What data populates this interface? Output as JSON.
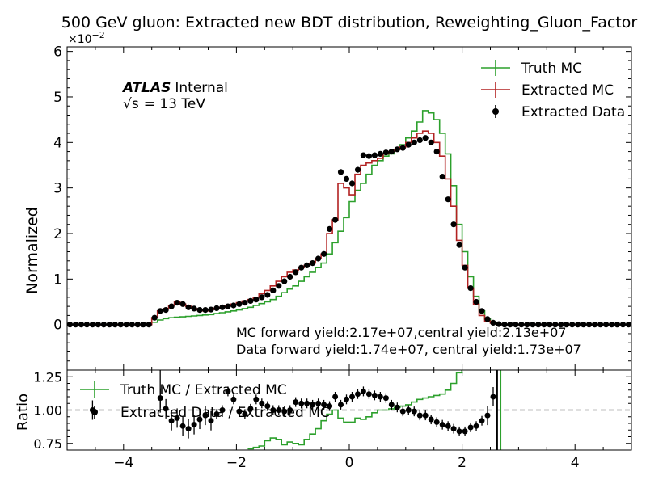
{
  "title": "500 GeV gluon: Extracted new BDT distribution, Reweighting_Gluon_Factor",
  "atlas": {
    "brand": "ATLAS",
    "status": "Internal",
    "energy_prefix": "√s",
    "energy_value": "= 13 TeV"
  },
  "yields": {
    "mc": "MC forward yield:2.17e+07,central yield:2.13e+07",
    "data": "Data forward yield:1.74e+07, central yield:1.73e+07"
  },
  "colors": {
    "truth": "#2ca02c",
    "extracted": "#b22222",
    "data": "#000000"
  },
  "chart_data": [
    {
      "type": "line",
      "ylabel": "Normalized",
      "y_multiplier": "×10",
      "y_exponent": "−2",
      "xlim": [
        -5,
        5
      ],
      "ylim": [
        -1,
        6.1
      ],
      "xticks": [
        -4,
        -2,
        0,
        2,
        4
      ],
      "xtick_labels": [
        "−4",
        "−2",
        "0",
        "2",
        "4"
      ],
      "yticks": [
        0,
        1,
        2,
        3,
        4,
        5,
        6
      ],
      "ytick_labels": [
        "0",
        "1",
        "2",
        "3",
        "4",
        "5",
        "6"
      ],
      "legend_position": "top-right",
      "legend": [
        "Truth MC",
        "Extracted MC",
        "Extracted Data"
      ],
      "x": [
        -4.95,
        -4.85,
        -4.75,
        -4.65,
        -4.55,
        -4.45,
        -4.35,
        -4.25,
        -4.15,
        -4.05,
        -3.95,
        -3.85,
        -3.75,
        -3.65,
        -3.55,
        -3.45,
        -3.35,
        -3.25,
        -3.15,
        -3.05,
        -2.95,
        -2.85,
        -2.75,
        -2.65,
        -2.55,
        -2.45,
        -2.35,
        -2.25,
        -2.15,
        -2.05,
        -1.95,
        -1.85,
        -1.75,
        -1.65,
        -1.55,
        -1.45,
        -1.35,
        -1.25,
        -1.15,
        -1.05,
        -0.95,
        -0.85,
        -0.75,
        -0.65,
        -0.55,
        -0.45,
        -0.35,
        -0.25,
        -0.15,
        -0.05,
        0.05,
        0.15,
        0.25,
        0.35,
        0.45,
        0.55,
        0.65,
        0.75,
        0.85,
        0.95,
        1.05,
        1.15,
        1.25,
        1.35,
        1.45,
        1.55,
        1.65,
        1.75,
        1.85,
        1.95,
        2.05,
        2.15,
        2.25,
        2.35,
        2.45,
        2.55,
        2.65,
        2.75,
        2.85,
        2.95,
        3.05,
        3.15,
        3.25,
        3.35,
        3.45,
        3.55,
        3.65,
        3.75,
        3.85,
        3.95,
        4.05,
        4.15,
        4.25,
        4.35,
        4.45,
        4.55,
        4.65,
        4.75,
        4.85,
        4.95
      ],
      "series": [
        {
          "name": "Truth MC",
          "values": [
            0,
            0,
            0,
            0,
            0,
            0,
            0,
            0,
            0,
            0,
            0,
            0,
            0,
            0,
            0,
            0.05,
            0.1,
            0.13,
            0.15,
            0.16,
            0.17,
            0.18,
            0.19,
            0.2,
            0.21,
            0.22,
            0.24,
            0.26,
            0.28,
            0.3,
            0.32,
            0.35,
            0.38,
            0.42,
            0.46,
            0.5,
            0.55,
            0.62,
            0.7,
            0.78,
            0.85,
            0.95,
            1.05,
            1.15,
            1.25,
            1.35,
            1.55,
            1.8,
            2.05,
            2.35,
            2.7,
            2.95,
            3.1,
            3.3,
            3.5,
            3.6,
            3.7,
            3.75,
            3.85,
            3.95,
            4.1,
            4.25,
            4.45,
            4.7,
            4.65,
            4.5,
            4.2,
            3.75,
            3.05,
            2.2,
            1.6,
            1.05,
            0.62,
            0.3,
            0.12,
            0.04,
            0.01,
            0,
            0,
            0,
            0,
            0,
            0,
            0,
            0,
            0,
            0,
            0,
            0,
            0,
            0,
            0,
            0,
            0,
            0,
            0,
            0,
            0,
            0,
            0
          ]
        },
        {
          "name": "Extracted MC",
          "values": [
            0,
            0,
            0,
            0,
            0,
            0,
            0,
            0,
            0,
            0,
            0,
            0,
            0,
            0,
            0,
            0.15,
            0.3,
            0.35,
            0.42,
            0.5,
            0.45,
            0.4,
            0.35,
            0.32,
            0.3,
            0.33,
            0.36,
            0.38,
            0.42,
            0.45,
            0.48,
            0.52,
            0.55,
            0.6,
            0.68,
            0.75,
            0.85,
            0.95,
            1.05,
            1.15,
            1.2,
            1.25,
            1.3,
            1.35,
            1.45,
            1.55,
            2.0,
            2.3,
            3.1,
            3.0,
            2.85,
            3.3,
            3.5,
            3.55,
            3.6,
            3.65,
            3.75,
            3.8,
            3.85,
            3.9,
            4.0,
            4.1,
            4.2,
            4.25,
            4.2,
            4.0,
            3.7,
            3.2,
            2.6,
            1.85,
            1.3,
            0.8,
            0.45,
            0.2,
            0.08,
            0.03,
            0.01,
            0,
            0,
            0,
            0,
            0,
            0,
            0,
            0,
            0,
            0,
            0,
            0,
            0,
            0,
            0,
            0,
            0,
            0,
            0,
            0,
            0,
            0,
            0
          ]
        },
        {
          "name": "Extracted Data",
          "values": [
            0,
            0,
            0,
            0,
            0,
            0,
            0,
            0,
            0,
            0,
            0,
            0,
            0,
            0,
            0,
            0.15,
            0.3,
            0.32,
            0.4,
            0.48,
            0.45,
            0.38,
            0.35,
            0.32,
            0.32,
            0.33,
            0.36,
            0.38,
            0.4,
            0.42,
            0.45,
            0.48,
            0.52,
            0.55,
            0.6,
            0.65,
            0.75,
            0.85,
            0.95,
            1.05,
            1.15,
            1.25,
            1.3,
            1.35,
            1.45,
            1.55,
            2.1,
            2.3,
            3.35,
            3.2,
            3.1,
            3.4,
            3.72,
            3.7,
            3.72,
            3.75,
            3.78,
            3.8,
            3.85,
            3.88,
            3.95,
            4.0,
            4.05,
            4.1,
            4.0,
            3.8,
            3.25,
            2.75,
            2.2,
            1.75,
            1.25,
            0.8,
            0.5,
            0.3,
            0.12,
            0.04,
            0.01,
            0,
            0,
            0,
            0,
            0,
            0,
            0,
            0,
            0,
            0,
            0,
            0,
            0,
            0,
            0,
            0,
            0,
            0,
            0,
            0,
            0,
            0,
            0
          ]
        }
      ]
    },
    {
      "type": "line",
      "ylabel": "Ratio",
      "xlim": [
        -5,
        5
      ],
      "ylim": [
        0.7,
        1.3
      ],
      "xticks": [
        -4,
        -2,
        0,
        2,
        4
      ],
      "xtick_labels": [
        "−4",
        "−2",
        "0",
        "2",
        "4"
      ],
      "yticks": [
        0.75,
        1.0,
        1.25
      ],
      "ytick_labels": [
        "0.75",
        "1.00",
        "1.25"
      ],
      "reference_line": 1.0,
      "legend_position": "top-left",
      "legend": [
        "Truth MC / Extracted MC",
        "Extracted Data / Extracted MC"
      ],
      "series": [
        {
          "name": "Truth MC / Extracted MC",
          "x": [
            -1.75,
            -1.65,
            -1.55,
            -1.45,
            -1.35,
            -1.25,
            -1.15,
            -1.05,
            -0.95,
            -0.85,
            -0.75,
            -0.65,
            -0.55,
            -0.45,
            -0.35,
            -0.25,
            -0.15,
            -0.05,
            0.05,
            0.15,
            0.25,
            0.35,
            0.45,
            0.55,
            0.65,
            0.75,
            0.85,
            0.95,
            1.05,
            1.15,
            1.25,
            1.35,
            1.45,
            1.55,
            1.65,
            1.75,
            1.85,
            1.95
          ],
          "values": [
            0.71,
            0.72,
            0.73,
            0.77,
            0.79,
            0.78,
            0.74,
            0.76,
            0.75,
            0.74,
            0.78,
            0.82,
            0.86,
            0.92,
            0.97,
            1.0,
            0.94,
            0.91,
            0.91,
            0.94,
            0.93,
            0.95,
            0.98,
            1.0,
            1.0,
            1.01,
            1.02,
            1.03,
            1.04,
            1.06,
            1.08,
            1.09,
            1.1,
            1.11,
            1.12,
            1.15,
            1.2,
            1.28
          ]
        },
        {
          "name": "Extracted Data / Extracted MC",
          "x": [
            -4.55,
            -3.35,
            -3.25,
            -3.15,
            -3.05,
            -2.95,
            -2.85,
            -2.75,
            -2.65,
            -2.55,
            -2.45,
            -2.35,
            -2.25,
            -2.15,
            -2.05,
            -1.95,
            -1.85,
            -1.75,
            -1.65,
            -1.55,
            -1.45,
            -1.35,
            -1.25,
            -1.15,
            -1.05,
            -0.95,
            -0.85,
            -0.75,
            -0.65,
            -0.55,
            -0.45,
            -0.35,
            -0.25,
            -0.15,
            -0.05,
            0.05,
            0.15,
            0.25,
            0.35,
            0.45,
            0.55,
            0.65,
            0.75,
            0.85,
            0.95,
            1.05,
            1.15,
            1.25,
            1.35,
            1.45,
            1.55,
            1.65,
            1.75,
            1.85,
            1.95,
            2.05,
            2.15,
            2.25,
            2.35,
            2.45,
            2.55
          ],
          "values": [
            1.0,
            1.09,
            1.01,
            0.92,
            0.94,
            0.88,
            0.86,
            0.89,
            0.93,
            0.96,
            0.92,
            0.97,
            1.0,
            1.14,
            1.08,
            0.99,
            0.97,
            1.01,
            1.08,
            1.05,
            1.03,
            1.0,
            1.0,
            0.99,
            1.0,
            1.06,
            1.05,
            1.05,
            1.04,
            1.05,
            1.04,
            1.03,
            1.1,
            1.04,
            1.08,
            1.1,
            1.12,
            1.14,
            1.12,
            1.11,
            1.1,
            1.09,
            1.04,
            1.02,
            0.99,
            1.0,
            0.99,
            0.96,
            0.96,
            0.93,
            0.91,
            0.89,
            0.88,
            0.86,
            0.84,
            0.84,
            0.87,
            0.88,
            0.92,
            0.96,
            1.1
          ]
        }
      ],
      "vertical_lines": [
        {
          "x": 2.62,
          "color": "#000000"
        },
        {
          "x": 2.68,
          "color": "#2ca02c"
        }
      ]
    }
  ]
}
